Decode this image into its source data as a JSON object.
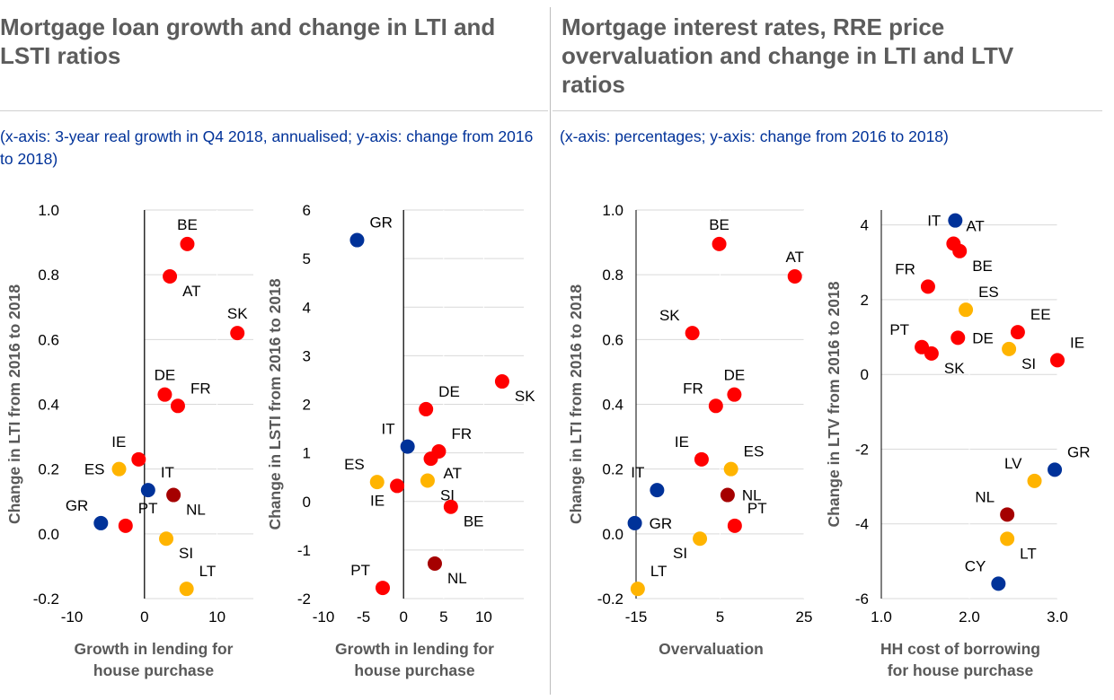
{
  "colors": {
    "red": "#ff0000",
    "darkred": "#a50000",
    "blue": "#003299",
    "yellow": "#ffb400"
  },
  "panels": [
    {
      "title": "Mortgage loan growth and change in LTI and LSTI ratios",
      "subtitle": "(x-axis: 3-year real growth in Q4 2018, annualised; y-axis: change from 2016 to 2018)"
    },
    {
      "title": "Mortgage interest rates, RRE price overvaluation and change in LTI and LTV ratios",
      "subtitle": "(x-axis: percentages; y-axis: change from 2016 to 2018)"
    }
  ],
  "chart_data": [
    {
      "type": "scatter",
      "xlabel": "Growth in lending for house purchase",
      "ylabel": "Change in LTI from 2016 to 2018",
      "xlim": [
        -10,
        15
      ],
      "ylim": [
        -0.2,
        1.0
      ],
      "xticks": [
        {
          "v": -10,
          "t": "-10"
        },
        {
          "v": 0,
          "t": "0"
        },
        {
          "v": 10,
          "t": "10"
        }
      ],
      "yticks": [
        {
          "v": -0.2,
          "t": "-0.2"
        },
        {
          "v": 0,
          "t": "0.0"
        },
        {
          "v": 0.2,
          "t": "0.2"
        },
        {
          "v": 0.4,
          "t": "0.4"
        },
        {
          "v": 0.6,
          "t": "0.6"
        },
        {
          "v": 0.8,
          "t": "0.8"
        },
        {
          "v": 1.0,
          "t": "1.0"
        }
      ],
      "points": [
        {
          "label": "BE",
          "x": 5.9,
          "y": 0.895,
          "color": "red",
          "pos": "top"
        },
        {
          "label": "AT",
          "x": 3.5,
          "y": 0.795,
          "color": "red",
          "pos": "br"
        },
        {
          "label": "SK",
          "x": 12.8,
          "y": 0.62,
          "color": "red",
          "pos": "top"
        },
        {
          "label": "DE",
          "x": 2.8,
          "y": 0.43,
          "color": "red",
          "pos": "top"
        },
        {
          "label": "FR",
          "x": 4.6,
          "y": 0.395,
          "color": "red",
          "pos": "tr"
        },
        {
          "label": "IE",
          "x": -0.8,
          "y": 0.23,
          "color": "red",
          "pos": "tl"
        },
        {
          "label": "ES",
          "x": -3.5,
          "y": 0.2,
          "color": "yellow",
          "pos": "left"
        },
        {
          "label": "IT",
          "x": 0.5,
          "y": 0.135,
          "color": "blue",
          "pos": "tr"
        },
        {
          "label": "NL",
          "x": 4.0,
          "y": 0.12,
          "color": "darkred",
          "pos": "br"
        },
        {
          "label": "GR",
          "x": -6.0,
          "y": 0.033,
          "color": "blue",
          "pos": "tl"
        },
        {
          "label": "PT",
          "x": -2.6,
          "y": 0.025,
          "color": "red",
          "pos": "tr"
        },
        {
          "label": "SI",
          "x": 3.0,
          "y": -0.015,
          "color": "yellow",
          "pos": "br"
        },
        {
          "label": "LT",
          "x": 5.8,
          "y": -0.17,
          "color": "yellow",
          "pos": "tr"
        }
      ]
    },
    {
      "type": "scatter",
      "xlabel": "Growth in lending for house purchase",
      "ylabel": "Change in LSTI from 2016 to 2018",
      "xlim": [
        -10,
        15
      ],
      "ylim": [
        -2,
        6
      ],
      "xticks": [
        {
          "v": -10,
          "t": "-10"
        },
        {
          "v": -5,
          "t": "-5"
        },
        {
          "v": 0,
          "t": "0"
        },
        {
          "v": 5,
          "t": "5"
        },
        {
          "v": 10,
          "t": "10"
        }
      ],
      "yticks": [
        {
          "v": -2,
          "t": "-2"
        },
        {
          "v": -1,
          "t": "-1"
        },
        {
          "v": 0,
          "t": "0"
        },
        {
          "v": 1,
          "t": "1"
        },
        {
          "v": 2,
          "t": "2"
        },
        {
          "v": 3,
          "t": "3"
        },
        {
          "v": 4,
          "t": "4"
        },
        {
          "v": 5,
          "t": "5"
        },
        {
          "v": 6,
          "t": "6"
        }
      ],
      "points": [
        {
          "label": "GR",
          "x": -5.8,
          "y": 5.38,
          "color": "blue",
          "pos": "tr"
        },
        {
          "label": "SK",
          "x": 12.3,
          "y": 2.47,
          "color": "red",
          "pos": "br"
        },
        {
          "label": "DE",
          "x": 2.8,
          "y": 1.9,
          "color": "red",
          "pos": "tr"
        },
        {
          "label": "IT",
          "x": 0.5,
          "y": 1.13,
          "color": "blue",
          "pos": "tl"
        },
        {
          "label": "FR",
          "x": 4.4,
          "y": 1.03,
          "color": "red",
          "pos": "tr"
        },
        {
          "label": "AT",
          "x": 3.4,
          "y": 0.88,
          "color": "red",
          "pos": "br"
        },
        {
          "label": "ES",
          "x": -3.3,
          "y": 0.4,
          "color": "yellow",
          "pos": "tl"
        },
        {
          "label": "SI",
          "x": 3.0,
          "y": 0.43,
          "color": "yellow",
          "pos": "br"
        },
        {
          "label": "IE",
          "x": -0.8,
          "y": 0.32,
          "color": "red",
          "pos": "bl"
        },
        {
          "label": "BE",
          "x": 5.9,
          "y": -0.11,
          "color": "red",
          "pos": "br"
        },
        {
          "label": "NL",
          "x": 3.9,
          "y": -1.28,
          "color": "darkred",
          "pos": "br"
        },
        {
          "label": "PT",
          "x": -2.6,
          "y": -1.78,
          "color": "red",
          "pos": "tl"
        }
      ]
    },
    {
      "type": "scatter",
      "xlabel": "Overvaluation",
      "ylabel": "Change in LTI from 2016 to 2018",
      "xlim": [
        -15,
        25
      ],
      "ylim": [
        -0.2,
        1.0
      ],
      "xticks": [
        {
          "v": -15,
          "t": "-15"
        },
        {
          "v": 5,
          "t": "5"
        },
        {
          "v": 25,
          "t": "25"
        }
      ],
      "yticks": [
        {
          "v": -0.2,
          "t": "-0.2"
        },
        {
          "v": 0,
          "t": "0.0"
        },
        {
          "v": 0.2,
          "t": "0.2"
        },
        {
          "v": 0.4,
          "t": "0.4"
        },
        {
          "v": 0.6,
          "t": "0.6"
        },
        {
          "v": 0.8,
          "t": "0.8"
        },
        {
          "v": 1.0,
          "t": "1.0"
        }
      ],
      "points": [
        {
          "label": "BE",
          "x": 4.8,
          "y": 0.895,
          "color": "red",
          "pos": "top"
        },
        {
          "label": "AT",
          "x": 22.8,
          "y": 0.795,
          "color": "red",
          "pos": "top"
        },
        {
          "label": "SK",
          "x": -1.6,
          "y": 0.62,
          "color": "red",
          "pos": "tl"
        },
        {
          "label": "DE",
          "x": 8.4,
          "y": 0.43,
          "color": "red",
          "pos": "top"
        },
        {
          "label": "FR",
          "x": 4.0,
          "y": 0.395,
          "color": "red",
          "pos": "tl"
        },
        {
          "label": "IE",
          "x": 0.6,
          "y": 0.23,
          "color": "red",
          "pos": "tl"
        },
        {
          "label": "ES",
          "x": 7.6,
          "y": 0.2,
          "color": "yellow",
          "pos": "tr"
        },
        {
          "label": "IT",
          "x": -10.0,
          "y": 0.135,
          "color": "blue",
          "pos": "tl"
        },
        {
          "label": "NL",
          "x": 6.8,
          "y": 0.12,
          "color": "darkred",
          "pos": "right"
        },
        {
          "label": "GR",
          "x": -15.3,
          "y": 0.033,
          "color": "blue",
          "pos": "right"
        },
        {
          "label": "PT",
          "x": 8.5,
          "y": 0.025,
          "color": "red",
          "pos": "tr"
        },
        {
          "label": "SI",
          "x": 0.2,
          "y": -0.015,
          "color": "yellow",
          "pos": "bl"
        },
        {
          "label": "LT",
          "x": -14.6,
          "y": -0.17,
          "color": "yellow",
          "pos": "tr"
        }
      ]
    },
    {
      "type": "scatter",
      "xlabel": "HH cost of borrowing for house purchase",
      "ylabel": "Change in LTV from 2016 to 2018",
      "xlim": [
        1.0,
        3.0
      ],
      "ylim": [
        -6,
        4.4
      ],
      "xticks": [
        {
          "v": 1.0,
          "t": "1.0"
        },
        {
          "v": 2.0,
          "t": "2.0"
        },
        {
          "v": 3.0,
          "t": "3.0"
        }
      ],
      "yticks": [
        {
          "v": -6,
          "t": "-6"
        },
        {
          "v": -4,
          "t": "-4"
        },
        {
          "v": -2,
          "t": "-2"
        },
        {
          "v": 0,
          "t": "0"
        },
        {
          "v": 2,
          "t": "2"
        },
        {
          "v": 4,
          "t": "4"
        }
      ],
      "points": [
        {
          "label": "IT",
          "x": 1.84,
          "y": 4.12,
          "color": "blue",
          "pos": "left"
        },
        {
          "label": "AT",
          "x": 1.82,
          "y": 3.5,
          "color": "red",
          "pos": "tr"
        },
        {
          "label": "BE",
          "x": 1.89,
          "y": 3.3,
          "color": "red",
          "pos": "br"
        },
        {
          "label": "FR",
          "x": 1.53,
          "y": 2.35,
          "color": "red",
          "pos": "tl"
        },
        {
          "label": "ES",
          "x": 1.96,
          "y": 1.73,
          "color": "yellow",
          "pos": "tr"
        },
        {
          "label": "EE",
          "x": 2.55,
          "y": 1.13,
          "color": "red",
          "pos": "tr"
        },
        {
          "label": "DE",
          "x": 1.87,
          "y": 0.98,
          "color": "red",
          "pos": "right"
        },
        {
          "label": "PT",
          "x": 1.46,
          "y": 0.73,
          "color": "red",
          "pos": "tl"
        },
        {
          "label": "SI",
          "x": 2.45,
          "y": 0.68,
          "color": "yellow",
          "pos": "br"
        },
        {
          "label": "SK",
          "x": 1.57,
          "y": 0.56,
          "color": "red",
          "pos": "br"
        },
        {
          "label": "IE",
          "x": 3.0,
          "y": 0.38,
          "color": "red",
          "pos": "tr"
        },
        {
          "label": "GR",
          "x": 2.97,
          "y": -2.55,
          "color": "blue",
          "pos": "tr"
        },
        {
          "label": "LV",
          "x": 2.74,
          "y": -2.85,
          "color": "yellow",
          "pos": "tl"
        },
        {
          "label": "NL",
          "x": 2.43,
          "y": -3.75,
          "color": "darkred",
          "pos": "tl"
        },
        {
          "label": "LT",
          "x": 2.43,
          "y": -4.4,
          "color": "yellow",
          "pos": "br"
        },
        {
          "label": "CY",
          "x": 2.33,
          "y": -5.6,
          "color": "blue",
          "pos": "tl"
        }
      ]
    }
  ]
}
